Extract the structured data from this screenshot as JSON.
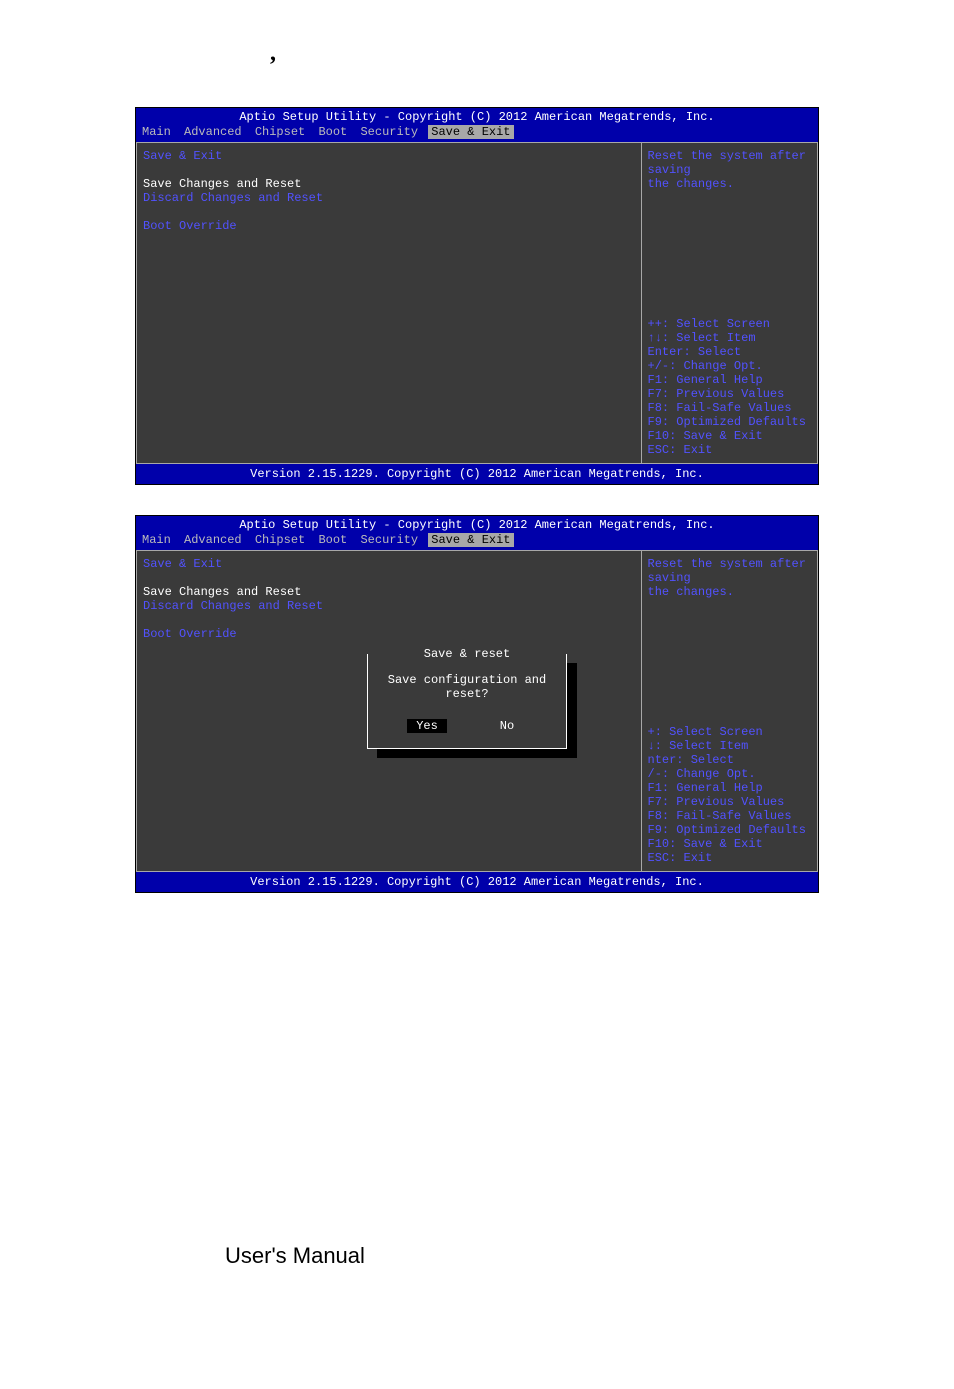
{
  "header_line": "Aptio Setup Utility - Copyright (C) 2012 American Megatrends, Inc.",
  "footer_line": "Version 2.15.1229. Copyright (C) 2012 American Megatrends, Inc.",
  "menu_tabs": [
    "Main",
    "Advanced",
    "Chipset",
    "Boot",
    "Security",
    "Save & Exit"
  ],
  "selected_tab_index": 5,
  "left_items": [
    {
      "text": "Save & Exit",
      "color": "blue"
    },
    {
      "text": "",
      "color": "blue"
    },
    {
      "text": "Save Changes and Reset",
      "color": "white"
    },
    {
      "text": "Discard Changes and Reset",
      "color": "blue"
    },
    {
      "text": "",
      "color": "blue"
    },
    {
      "text": "Boot Override",
      "color": "blue"
    }
  ],
  "right_desc": [
    "Reset the system after saving",
    "the changes."
  ],
  "right_keys": [
    "++: Select Screen",
    "↑↓: Select Item",
    "Enter: Select",
    "+/-: Change Opt.",
    "F1: General Help",
    "F7: Previous Values",
    "F8: Fail-Safe Values",
    "F9: Optimized Defaults",
    "F10: Save & Exit",
    "ESC: Exit"
  ],
  "right_keys_clipped": [
    "+: Select Screen",
    "↓: Select Item",
    "nter: Select",
    "/-: Change Opt.",
    "F1: General Help",
    "F7: Previous Values",
    "F8: Fail-Safe Values",
    "F9: Optimized Defaults",
    "F10: Save & Exit",
    "ESC: Exit"
  ],
  "dialog": {
    "title": "Save & reset",
    "msg": "Save configuration and reset?",
    "yes": "Yes",
    "no": "No"
  },
  "colors": {
    "bios_blue": "#0000aa",
    "bios_grey_pane": "#3a3a3a",
    "border_grey": "#a8a8a8",
    "text_blue": "#5252ff",
    "text_white": "#ffffff",
    "page_bg": "#ffffff"
  },
  "manual_text": "User's Manual",
  "comma_glyph": ","
}
